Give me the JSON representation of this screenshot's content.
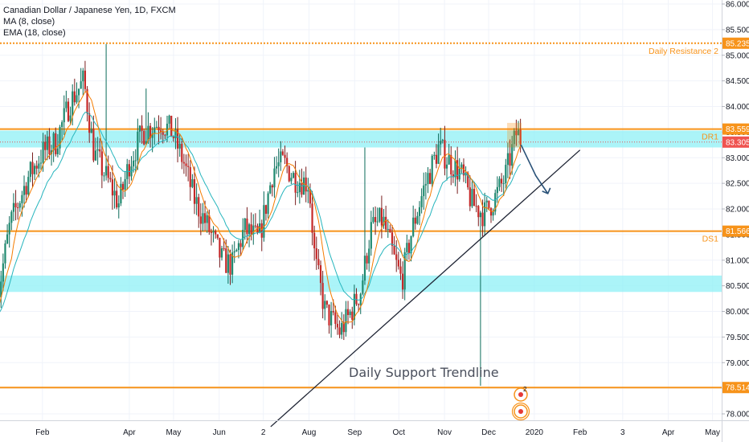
{
  "legend": {
    "title": "Canadian Dollar / Japanese Yen, 1D, FXCM",
    "ma": "MA (8, close)",
    "ema": "EMA (18, close)"
  },
  "colors": {
    "up": "#26a69a",
    "down": "#ef5350",
    "candle": "#2b2b2b",
    "level": "#f7931a",
    "zone": "#8ff0f5",
    "ma": "#f57c00",
    "ema": "#26b5bd",
    "price_tag": "#ef5350",
    "trendline": "#1d2333",
    "arrow": "#2a5278"
  },
  "chart_data": {
    "type": "candlestick",
    "symbol": "CADJPY",
    "interval": "1D",
    "x_ticks": [
      "Feb",
      "Apr",
      "May",
      "Jun",
      "2",
      "Aug",
      "Sep",
      "Oct",
      "Nov",
      "Dec",
      "2020",
      "Feb",
      "3",
      "Apr",
      "May"
    ],
    "y_ticks": [
      "86.000",
      "85.500",
      "85.000",
      "84.500",
      "84.000",
      "83.500",
      "83.000",
      "82.500",
      "82.000",
      "81.500",
      "81.000",
      "80.500",
      "80.000",
      "79.500",
      "79.000",
      "78.500",
      "78.000"
    ],
    "ylim": [
      77.8,
      86.1
    ],
    "current_price": "83.305",
    "levels": [
      {
        "name": "Daily Resistance 2",
        "value": 85.235,
        "tag": "85.235",
        "style": "dotted"
      },
      {
        "name": "DR1",
        "value": 83.559,
        "tag": "83.559",
        "style": "solid"
      },
      {
        "name": "DS1",
        "value": 81.566,
        "tag": "81.566",
        "style": "solid"
      },
      {
        "name": "",
        "value": 78.514,
        "tag": "78.514",
        "style": "solid"
      }
    ],
    "zones": [
      {
        "from": 83.2,
        "to": 83.53
      },
      {
        "from": 80.38,
        "to": 80.7
      }
    ],
    "trendline_label": "Daily Support Trendline",
    "trendline": {
      "start": [
        "2019-07-06",
        77.75
      ],
      "end": [
        "2020-02-01",
        83.15
      ]
    },
    "projection": {
      "from": [
        "2019-12-23",
        83.25
      ],
      "via": [
        "2020-01-02",
        82.65
      ],
      "to": [
        "2020-01-08",
        82.3
      ]
    },
    "price_path": [
      [
        "2019-01-01",
        80.2
      ],
      [
        "2019-01-10",
        81.7
      ],
      [
        "2019-01-22",
        82.6
      ],
      [
        "2019-02-01",
        83.1
      ],
      [
        "2019-02-10",
        83.3
      ],
      [
        "2019-02-20",
        84.1
      ],
      [
        "2019-03-01",
        84.5
      ],
      [
        "2019-03-08",
        83.1
      ],
      [
        "2019-03-15",
        82.7
      ],
      [
        "2019-03-25",
        82.1
      ],
      [
        "2019-04-01",
        82.9
      ],
      [
        "2019-04-10",
        83.5
      ],
      [
        "2019-04-22",
        83.7
      ],
      [
        "2019-04-30",
        83.5
      ],
      [
        "2019-05-08",
        82.9
      ],
      [
        "2019-05-15",
        82.2
      ],
      [
        "2019-05-25",
        81.6
      ],
      [
        "2019-06-03",
        81.0
      ],
      [
        "2019-06-10",
        80.9
      ],
      [
        "2019-06-18",
        81.6
      ],
      [
        "2019-06-28",
        81.4
      ],
      [
        "2019-07-08",
        82.8
      ],
      [
        "2019-07-15",
        82.9
      ],
      [
        "2019-07-22",
        82.6
      ],
      [
        "2019-08-01",
        82.5
      ],
      [
        "2019-08-05",
        81.0
      ],
      [
        "2019-08-12",
        80.0
      ],
      [
        "2019-08-22",
        79.6
      ],
      [
        "2019-08-28",
        79.9
      ],
      [
        "2019-09-05",
        80.4
      ],
      [
        "2019-09-12",
        81.6
      ],
      [
        "2019-09-20",
        81.8
      ],
      [
        "2019-09-28",
        81.0
      ],
      [
        "2019-10-03",
        80.6
      ],
      [
        "2019-10-10",
        81.6
      ],
      [
        "2019-10-18",
        82.4
      ],
      [
        "2019-10-28",
        83.2
      ],
      [
        "2019-11-05",
        82.9
      ],
      [
        "2019-11-12",
        82.7
      ],
      [
        "2019-11-20",
        82.1
      ],
      [
        "2019-11-28",
        81.9
      ],
      [
        "2019-12-05",
        82.2
      ],
      [
        "2019-12-12",
        82.6
      ],
      [
        "2019-12-20",
        83.5
      ],
      [
        "2019-12-24",
        83.3
      ]
    ]
  }
}
